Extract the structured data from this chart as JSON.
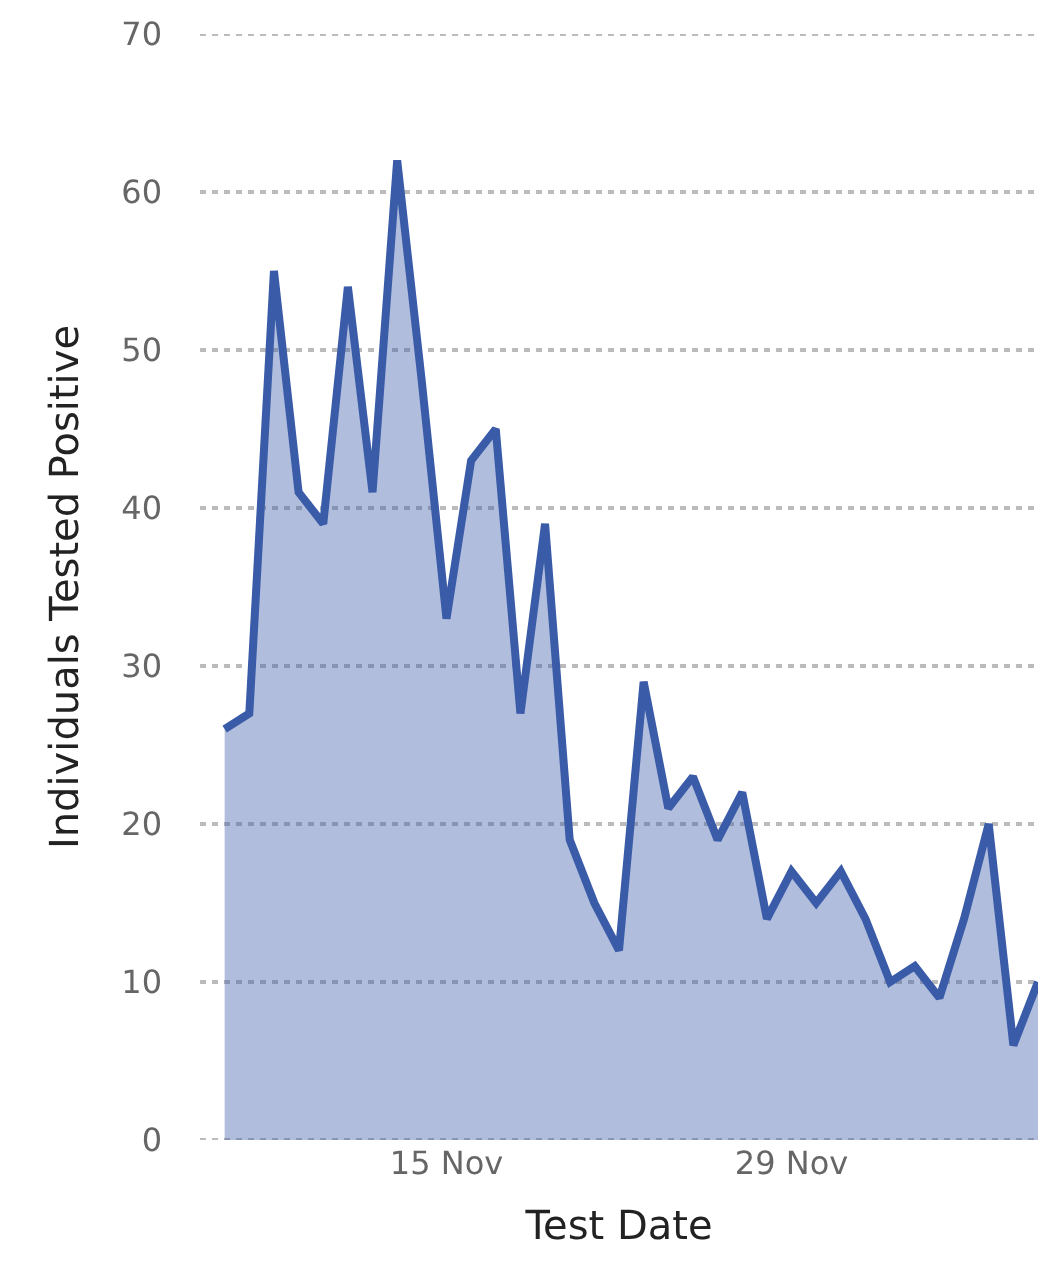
{
  "chart_data": {
    "type": "area",
    "xlabel": "Test Date",
    "ylabel": "Individuals Tested Positive",
    "x": [
      "--11-06",
      "--11-07",
      "--11-08",
      "--11-09",
      "--11-10",
      "--11-11",
      "--11-12",
      "--11-13",
      "--11-14",
      "--11-15",
      "--11-16",
      "--11-17",
      "--11-18",
      "--11-19",
      "--11-20",
      "--11-21",
      "--11-22",
      "--11-23",
      "--11-24",
      "--11-25",
      "--11-26",
      "--11-27",
      "--11-28",
      "--11-29",
      "--11-30",
      "--12-01",
      "--12-02",
      "--12-03",
      "--12-04",
      "--12-05",
      "--12-06",
      "--12-07",
      "--12-08",
      "--12-09"
    ],
    "series": [
      {
        "color": "#3a5ba8",
        "values": [
          26,
          27,
          55,
          41,
          39,
          54,
          41,
          62,
          48,
          33,
          43,
          45,
          27,
          39,
          19,
          15,
          12,
          29,
          21,
          23,
          19,
          22,
          14,
          17,
          15,
          17,
          14,
          10,
          11,
          9,
          14,
          20,
          6,
          10
        ]
      }
    ],
    "ylim": [
      0,
      70
    ],
    "yticks": [
      0,
      10,
      20,
      30,
      40,
      50,
      60,
      70
    ],
    "xlim": [
      "--11-05",
      "--12-09"
    ],
    "xticks": [
      {
        "value": "--11-15",
        "label": "15 Nov"
      },
      {
        "value": "--11-29",
        "label": "29 Nov"
      }
    ],
    "grid": "y"
  }
}
